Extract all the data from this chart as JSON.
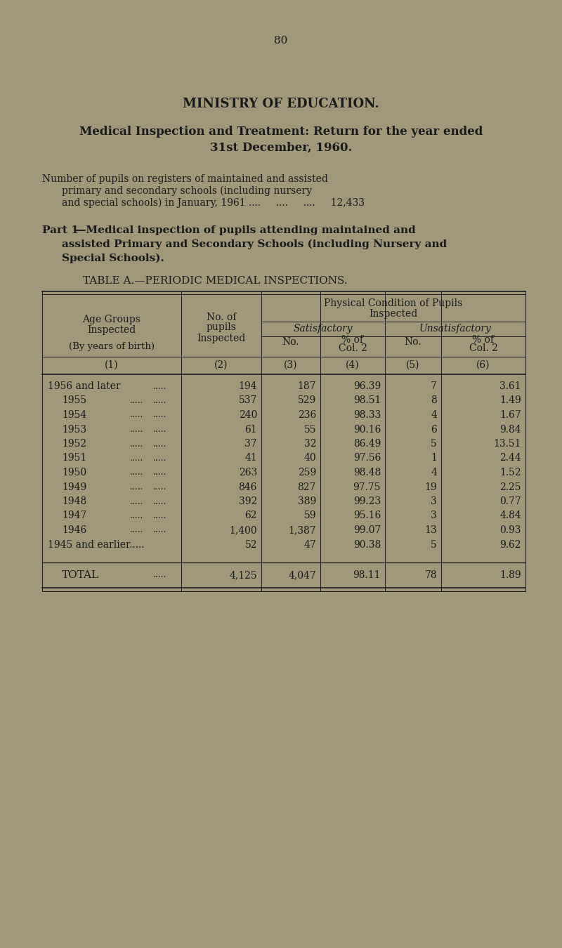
{
  "bg_color": "#a09878",
  "text_color": "#1a1a1a",
  "page_number": "80",
  "title1": "MINISTRY OF EDUCATION.",
  "title2": "Medical Inspection and Treatment: Return for the year ended",
  "title3": "31st December, 1960.",
  "rows": [
    [
      "1956 and later",
      "194",
      "187",
      "96.39",
      "7",
      "3.61"
    ],
    [
      "1955",
      "537",
      "529",
      "98.51",
      "8",
      "1.49"
    ],
    [
      "1954",
      "240",
      "236",
      "98.33",
      "4",
      "1.67"
    ],
    [
      "1953",
      "61",
      "55",
      "90.16",
      "6",
      "9.84"
    ],
    [
      "1952",
      "37",
      "32",
      "86.49",
      "5",
      "13.51"
    ],
    [
      "1951",
      "41",
      "40",
      "97.56",
      "1",
      "2.44"
    ],
    [
      "1950",
      "263",
      "259",
      "98.48",
      "4",
      "1.52"
    ],
    [
      "1949",
      "846",
      "827",
      "97.75",
      "19",
      "2.25"
    ],
    [
      "1948",
      "392",
      "389",
      "99.23",
      "3",
      "0.77"
    ],
    [
      "1947",
      "62",
      "59",
      "95.16",
      "3",
      "4.84"
    ],
    [
      "1946",
      "1,400",
      "1,387",
      "99.07",
      "13",
      "0.93"
    ],
    [
      "1945 and earlier",
      "52",
      "47",
      "90.38",
      "5",
      "9.62"
    ]
  ],
  "total_row": [
    "TOTAL",
    "4,125",
    "4,047",
    "98.11",
    "78",
    "1.89"
  ]
}
